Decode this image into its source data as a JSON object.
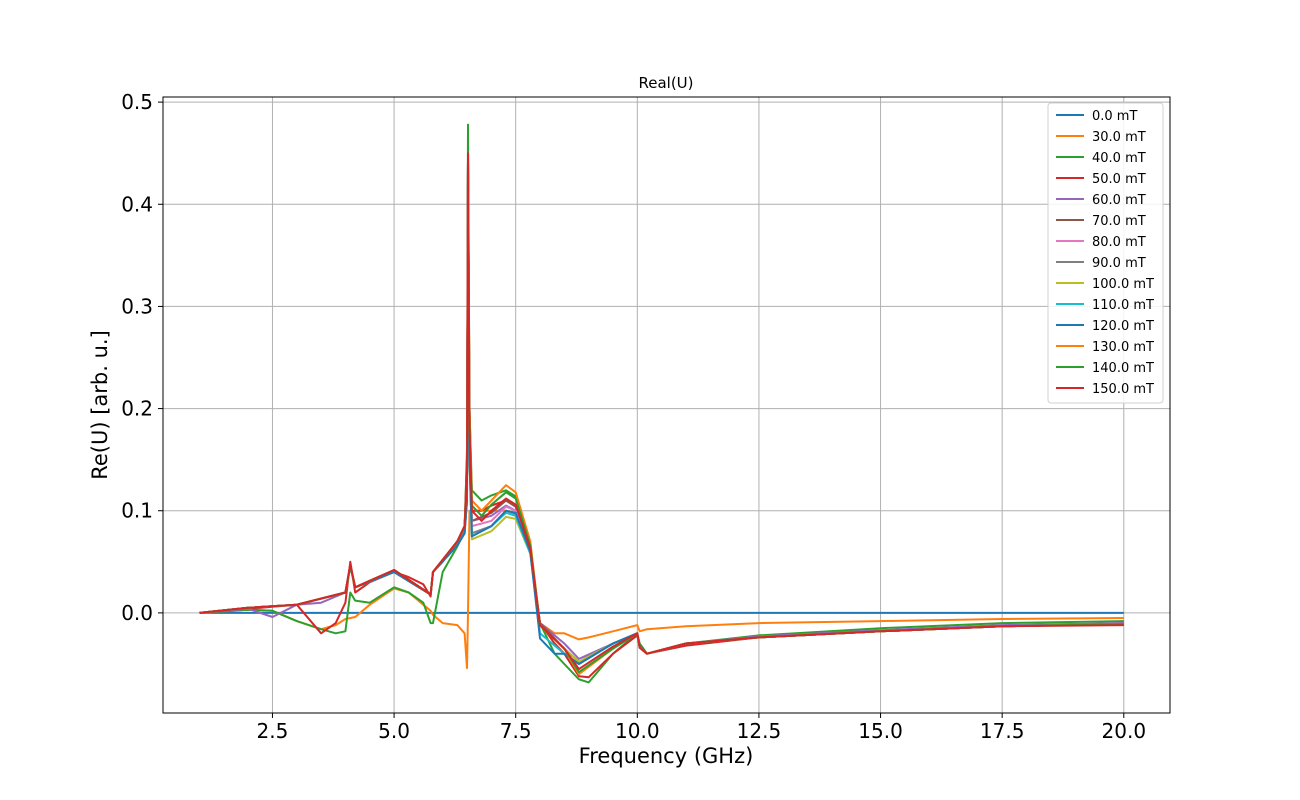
{
  "chart_data": {
    "type": "line",
    "title": "Real(U)",
    "xlabel": "Frequency (GHz)",
    "ylabel": "Re(U) [arb. u.]",
    "xlim": [
      0.25,
      20.95
    ],
    "ylim": [
      -0.098,
      0.505
    ],
    "xticks": [
      2.5,
      5.0,
      7.5,
      10.0,
      12.5,
      15.0,
      17.5,
      20.0
    ],
    "xtick_labels": [
      "2.5",
      "5.0",
      "7.5",
      "10.0",
      "12.5",
      "15.0",
      "17.5",
      "20.0"
    ],
    "yticks": [
      0.0,
      0.1,
      0.2,
      0.3,
      0.4,
      0.5
    ],
    "ytick_labels": [
      "0.0",
      "0.1",
      "0.2",
      "0.3",
      "0.4",
      "0.5"
    ],
    "grid": true,
    "legend_position": "top-right",
    "series": [
      {
        "name": "0.0 mT",
        "color": "#1f77b4",
        "x": [
          1,
          20
        ],
        "y": [
          0,
          0
        ]
      },
      {
        "name": "30.0 mT",
        "color": "#ff7f0e",
        "x": [
          1.0,
          2.0,
          2.5,
          3.0,
          3.5,
          3.8,
          4.0,
          4.2,
          4.5,
          5.0,
          5.3,
          5.6,
          5.75,
          5.8,
          6.0,
          6.3,
          6.45,
          6.5,
          6.52,
          6.55,
          6.6,
          7.0,
          7.3,
          7.5,
          7.8,
          8.0,
          8.3,
          8.5,
          8.8,
          9.0,
          9.5,
          10.0,
          10.05,
          10.2,
          11.0,
          12.5,
          15.0,
          17.5,
          20.0
        ],
        "y": [
          0.0,
          0.003,
          0.002,
          -0.008,
          -0.016,
          -0.012,
          -0.006,
          -0.004,
          0.008,
          0.024,
          0.02,
          0.008,
          0.002,
          -0.002,
          -0.01,
          -0.012,
          -0.02,
          -0.054,
          0.0,
          0.1,
          0.1,
          0.1,
          0.1,
          0.098,
          0.06,
          -0.01,
          -0.02,
          -0.02,
          -0.026,
          -0.024,
          -0.018,
          -0.012,
          -0.018,
          -0.016,
          -0.013,
          -0.01,
          -0.008,
          -0.006,
          -0.005
        ]
      },
      {
        "name": "40.0 mT",
        "color": "#2ca02c",
        "x": [
          1.0,
          2.0,
          2.5,
          3.0,
          3.5,
          3.8,
          4.0,
          4.1,
          4.2,
          4.5,
          5.0,
          5.3,
          5.6,
          5.75,
          5.8,
          6.0,
          6.3,
          6.45,
          6.5,
          6.52,
          6.55,
          6.6,
          6.8,
          7.0,
          7.3,
          7.5,
          7.8,
          8.0,
          8.3,
          8.5,
          8.8,
          9.0,
          9.5,
          10.0,
          10.05,
          10.2,
          11.0,
          12.5,
          15.0,
          17.5,
          20.0
        ],
        "y": [
          0.0,
          0.003,
          0.002,
          -0.008,
          -0.016,
          -0.02,
          -0.018,
          0.02,
          0.012,
          0.01,
          0.025,
          0.02,
          0.01,
          -0.01,
          -0.01,
          0.04,
          0.065,
          0.08,
          0.16,
          0.478,
          0.2,
          0.12,
          0.11,
          0.115,
          0.12,
          0.114,
          0.065,
          -0.01,
          -0.04,
          -0.05,
          -0.065,
          -0.068,
          -0.04,
          -0.02,
          -0.03,
          -0.04,
          -0.03,
          -0.022,
          -0.015,
          -0.01,
          -0.008
        ]
      },
      {
        "name": "50.0 mT",
        "color": "#d62728",
        "x": [
          1.0,
          2.0,
          2.5,
          3.0,
          3.5,
          3.8,
          4.0,
          4.1,
          4.2,
          4.5,
          5.0,
          5.3,
          5.6,
          5.75,
          5.8,
          6.0,
          6.3,
          6.45,
          6.5,
          6.52,
          6.55,
          6.6,
          6.8,
          7.0,
          7.3,
          7.5,
          7.8,
          8.0,
          8.3,
          8.5,
          8.8,
          9.0,
          9.5,
          10.0,
          10.05,
          10.2,
          11.0,
          12.5,
          15.0,
          17.5,
          20.0
        ],
        "y": [
          0.0,
          0.004,
          0.006,
          0.008,
          -0.02,
          -0.01,
          0.01,
          0.05,
          0.02,
          0.03,
          0.04,
          0.035,
          0.028,
          0.016,
          0.04,
          0.05,
          0.07,
          0.085,
          0.15,
          0.45,
          0.2,
          0.1,
          0.1,
          0.105,
          0.11,
          0.104,
          0.06,
          -0.01,
          -0.03,
          -0.04,
          -0.062,
          -0.063,
          -0.04,
          -0.022,
          -0.032,
          -0.04,
          -0.032,
          -0.024,
          -0.018,
          -0.013,
          -0.01
        ]
      },
      {
        "name": "60.0 mT",
        "color": "#9467bd",
        "x": [
          1.0,
          2.0,
          2.5,
          3.0,
          3.5,
          4.0,
          4.1,
          4.2,
          5.0,
          5.75,
          5.8,
          6.3,
          6.45,
          6.5,
          6.52,
          6.55,
          6.6,
          7.0,
          7.3,
          7.5,
          7.8,
          8.0,
          8.5,
          8.8,
          9.5,
          10.0,
          10.05,
          10.2,
          11.0,
          12.5,
          15.0,
          17.5,
          20.0
        ],
        "y": [
          0.0,
          0.004,
          -0.004,
          0.008,
          0.01,
          0.02,
          0.045,
          0.025,
          0.042,
          0.018,
          0.04,
          0.07,
          0.085,
          0.13,
          0.44,
          0.18,
          0.09,
          0.095,
          0.105,
          0.1,
          0.06,
          -0.01,
          -0.03,
          -0.045,
          -0.03,
          -0.02,
          -0.033,
          -0.04,
          -0.03,
          -0.023,
          -0.017,
          -0.012,
          -0.01
        ]
      },
      {
        "name": "70.0 mT",
        "color": "#8c564b",
        "x": [
          1.0,
          2.0,
          3.0,
          4.0,
          4.1,
          4.2,
          5.0,
          5.75,
          5.8,
          6.3,
          6.45,
          6.5,
          6.52,
          6.55,
          6.6,
          7.0,
          7.3,
          7.5,
          7.8,
          8.0,
          8.5,
          8.8,
          9.5,
          10.0,
          10.05,
          10.2,
          11.0,
          12.5,
          15.0,
          17.5,
          20.0
        ],
        "y": [
          0.0,
          0.005,
          0.008,
          0.02,
          0.046,
          0.025,
          0.04,
          0.018,
          0.04,
          0.07,
          0.084,
          0.13,
          0.44,
          0.18,
          0.09,
          0.098,
          0.11,
          0.104,
          0.06,
          -0.01,
          -0.035,
          -0.048,
          -0.03,
          -0.02,
          -0.034,
          -0.04,
          -0.03,
          -0.024,
          -0.018,
          -0.013,
          -0.011
        ]
      },
      {
        "name": "80.0 mT",
        "color": "#e377c2",
        "x": [
          1.0,
          2.0,
          3.0,
          4.0,
          4.1,
          4.2,
          5.0,
          5.75,
          5.8,
          6.3,
          6.45,
          6.5,
          6.52,
          6.55,
          6.6,
          7.0,
          7.3,
          7.5,
          7.8,
          8.0,
          8.5,
          8.8,
          9.5,
          10.0,
          10.05,
          10.2,
          11.0,
          12.5,
          15.0,
          17.5,
          20.0
        ],
        "y": [
          0.0,
          0.005,
          0.008,
          0.02,
          0.046,
          0.025,
          0.04,
          0.018,
          0.04,
          0.068,
          0.082,
          0.12,
          0.44,
          0.17,
          0.085,
          0.09,
          0.104,
          0.1,
          0.06,
          -0.012,
          -0.035,
          -0.048,
          -0.03,
          -0.02,
          -0.034,
          -0.04,
          -0.03,
          -0.024,
          -0.018,
          -0.013,
          -0.011
        ]
      },
      {
        "name": "90.0 mT",
        "color": "#7f7f7f",
        "x": [
          1.0,
          2.0,
          3.0,
          4.0,
          4.1,
          4.2,
          5.0,
          5.75,
          5.8,
          6.3,
          6.45,
          6.5,
          6.52,
          6.55,
          6.6,
          7.0,
          7.3,
          7.5,
          7.8,
          8.0,
          8.5,
          8.8,
          9.5,
          10.0,
          10.05,
          10.2,
          11.0,
          12.5,
          15.0,
          17.5,
          20.0
        ],
        "y": [
          0.0,
          0.005,
          0.008,
          0.02,
          0.046,
          0.025,
          0.04,
          0.018,
          0.04,
          0.068,
          0.08,
          0.12,
          0.44,
          0.16,
          0.078,
          0.085,
          0.1,
          0.097,
          0.06,
          -0.012,
          -0.035,
          -0.048,
          -0.03,
          -0.02,
          -0.034,
          -0.04,
          -0.03,
          -0.024,
          -0.018,
          -0.013,
          -0.011
        ]
      },
      {
        "name": "100.0 mT",
        "color": "#bcbd22",
        "x": [
          1.0,
          2.0,
          3.0,
          4.0,
          4.1,
          4.2,
          5.0,
          5.75,
          5.8,
          6.3,
          6.45,
          6.5,
          6.52,
          6.55,
          6.6,
          7.0,
          7.3,
          7.5,
          7.8,
          8.0,
          8.5,
          8.8,
          9.5,
          10.0,
          10.05,
          10.2,
          11.0,
          12.5,
          15.0,
          17.5,
          20.0
        ],
        "y": [
          0.0,
          0.005,
          0.008,
          0.02,
          0.046,
          0.025,
          0.04,
          0.018,
          0.04,
          0.066,
          0.078,
          0.11,
          0.44,
          0.15,
          0.072,
          0.08,
          0.094,
          0.092,
          0.058,
          -0.012,
          -0.035,
          -0.048,
          -0.03,
          -0.02,
          -0.034,
          -0.04,
          -0.03,
          -0.024,
          -0.018,
          -0.013,
          -0.011
        ]
      },
      {
        "name": "110.0 mT",
        "color": "#17becf",
        "x": [
          1.0,
          2.0,
          3.0,
          4.0,
          4.1,
          4.2,
          5.0,
          5.75,
          5.8,
          6.3,
          6.45,
          6.5,
          6.52,
          6.55,
          6.6,
          7.0,
          7.3,
          7.5,
          7.8,
          8.0,
          8.5,
          8.8,
          9.5,
          10.0,
          10.05,
          10.2,
          11.0,
          12.5,
          15.0,
          17.5,
          20.0
        ],
        "y": [
          0.0,
          0.005,
          0.008,
          0.02,
          0.046,
          0.025,
          0.04,
          0.018,
          0.04,
          0.066,
          0.078,
          0.11,
          0.44,
          0.15,
          0.075,
          0.085,
          0.098,
          0.095,
          0.058,
          -0.02,
          -0.04,
          -0.05,
          -0.03,
          -0.02,
          -0.034,
          -0.04,
          -0.03,
          -0.024,
          -0.018,
          -0.013,
          -0.011
        ]
      },
      {
        "name": "120.0 mT",
        "color": "#1f77b4",
        "x": [
          1.0,
          2.0,
          3.0,
          4.0,
          4.1,
          4.2,
          5.0,
          5.75,
          5.8,
          6.3,
          6.45,
          6.5,
          6.52,
          6.55,
          6.6,
          7.0,
          7.3,
          7.5,
          7.8,
          8.0,
          8.3,
          8.5,
          8.8,
          9.5,
          10.0,
          10.05,
          10.2,
          11.0,
          12.5,
          15.0,
          17.5,
          20.0
        ],
        "y": [
          0.0,
          0.005,
          0.008,
          0.02,
          0.046,
          0.025,
          0.04,
          0.018,
          0.04,
          0.066,
          0.078,
          0.11,
          0.44,
          0.15,
          0.075,
          0.085,
          0.1,
          0.098,
          0.06,
          -0.025,
          -0.04,
          -0.04,
          -0.05,
          -0.03,
          -0.02,
          -0.034,
          -0.04,
          -0.03,
          -0.024,
          -0.018,
          -0.013,
          -0.011
        ]
      },
      {
        "name": "130.0 mT",
        "color": "#ff7f0e",
        "x": [
          1.0,
          2.0,
          3.0,
          4.0,
          4.1,
          4.2,
          5.0,
          5.75,
          5.8,
          6.3,
          6.45,
          6.5,
          6.52,
          6.55,
          6.6,
          6.8,
          7.0,
          7.3,
          7.5,
          7.8,
          8.0,
          8.5,
          8.8,
          9.5,
          10.0,
          10.05,
          10.2,
          11.0,
          12.5,
          15.0,
          17.5,
          20.0
        ],
        "y": [
          0.0,
          0.005,
          0.008,
          0.02,
          0.046,
          0.025,
          0.042,
          0.018,
          0.04,
          0.07,
          0.085,
          0.13,
          0.44,
          0.2,
          0.11,
          0.1,
          0.11,
          0.125,
          0.118,
          0.07,
          -0.012,
          -0.035,
          -0.06,
          -0.035,
          -0.02,
          -0.034,
          -0.04,
          -0.03,
          -0.024,
          -0.018,
          -0.013,
          -0.011
        ]
      },
      {
        "name": "140.0 mT",
        "color": "#2ca02c",
        "x": [
          1.0,
          2.0,
          3.0,
          4.0,
          4.1,
          4.2,
          5.0,
          5.75,
          5.8,
          6.3,
          6.45,
          6.5,
          6.52,
          6.55,
          6.6,
          6.8,
          7.0,
          7.3,
          7.5,
          7.8,
          8.0,
          8.5,
          8.8,
          9.5,
          10.0,
          10.05,
          10.2,
          11.0,
          12.5,
          15.0,
          17.5,
          20.0
        ],
        "y": [
          0.0,
          0.005,
          0.008,
          0.02,
          0.046,
          0.025,
          0.042,
          0.018,
          0.04,
          0.07,
          0.085,
          0.13,
          0.44,
          0.19,
          0.105,
          0.095,
          0.106,
          0.118,
          0.112,
          0.066,
          -0.012,
          -0.035,
          -0.058,
          -0.035,
          -0.02,
          -0.034,
          -0.04,
          -0.03,
          -0.024,
          -0.018,
          -0.013,
          -0.011
        ]
      },
      {
        "name": "150.0 mT",
        "color": "#d62728",
        "x": [
          1.0,
          2.0,
          3.0,
          4.0,
          4.1,
          4.2,
          5.0,
          5.75,
          5.8,
          6.3,
          6.45,
          6.5,
          6.52,
          6.55,
          6.6,
          6.8,
          7.0,
          7.3,
          7.5,
          7.8,
          8.0,
          8.5,
          8.8,
          9.5,
          10.0,
          10.05,
          10.2,
          11.0,
          12.5,
          15.0,
          17.5,
          20.0
        ],
        "y": [
          0.0,
          0.005,
          0.008,
          0.02,
          0.048,
          0.025,
          0.042,
          0.018,
          0.04,
          0.07,
          0.085,
          0.13,
          0.445,
          0.18,
          0.1,
          0.09,
          0.1,
          0.112,
          0.106,
          0.063,
          -0.012,
          -0.035,
          -0.055,
          -0.033,
          -0.02,
          -0.034,
          -0.04,
          -0.03,
          -0.024,
          -0.018,
          -0.013,
          -0.012
        ]
      }
    ]
  }
}
